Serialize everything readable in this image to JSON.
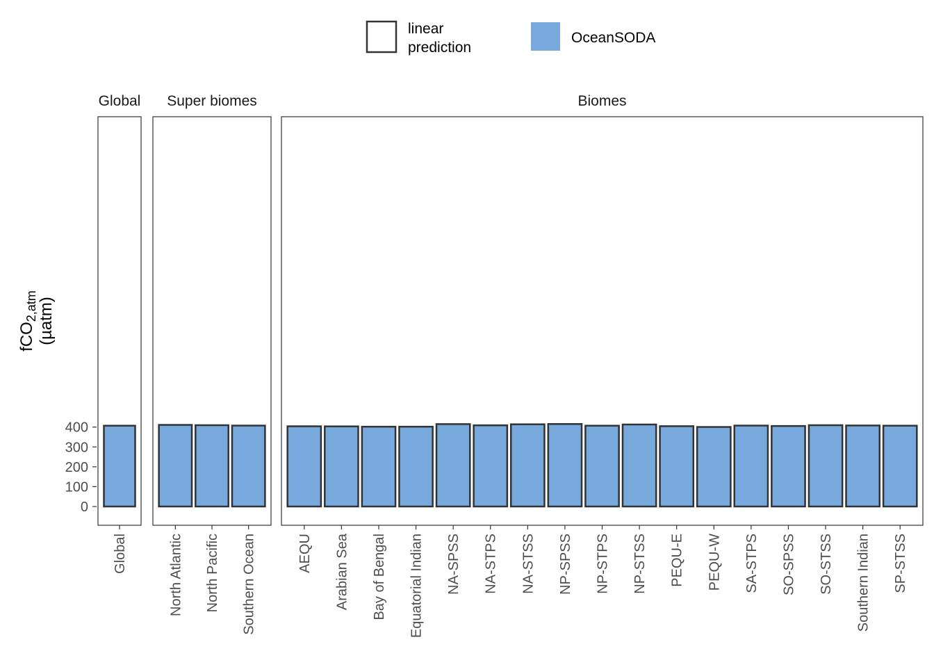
{
  "legend": {
    "items": [
      {
        "label_line1": "linear",
        "label_line2": "prediction",
        "type": "outline",
        "color": "#333333"
      },
      {
        "label": "OceanSODA",
        "type": "fill",
        "color": "#77a9dc"
      }
    ]
  },
  "chart_data": {
    "type": "bar",
    "ylabel_main": "fCO",
    "ylabel_sub": "2,atm",
    "ylabel_units": "(µatm)",
    "ylim": [
      0,
      420
    ],
    "yticks": [
      0,
      100,
      200,
      300,
      400
    ],
    "grid": false,
    "legend_position": "top",
    "colors": {
      "oceansoda": "#77a9dc",
      "outline": "#333333"
    },
    "panels": [
      {
        "title": "Global",
        "categories": [
          "Global"
        ],
        "series": [
          {
            "name": "linear prediction",
            "values": [
              407
            ]
          },
          {
            "name": "OceanSODA",
            "values": [
              407
            ]
          }
        ]
      },
      {
        "title": "Super biomes",
        "categories": [
          "North Atlantic",
          "North Pacific",
          "Southern Ocean"
        ],
        "series": [
          {
            "name": "linear prediction",
            "values": [
              411,
              409.5,
              407.5
            ]
          },
          {
            "name": "OceanSODA",
            "values": [
              411,
              409.5,
              407.5
            ]
          }
        ]
      },
      {
        "title": "Biomes",
        "categories": [
          "AEQU",
          "Arabian Sea",
          "Bay of Bengal",
          "Equatorial Indian",
          "NA-SPSS",
          "NA-STPS",
          "NA-STSS",
          "NP-SPSS",
          "NP-STPS",
          "NP-STSS",
          "PEQU-E",
          "PEQU-W",
          "SA-STPS",
          "SO-SPSS",
          "SO-STSS",
          "Southern Indian",
          "SP-STSS"
        ],
        "series": [
          {
            "name": "linear prediction",
            "values": [
              404,
              403.5,
              402,
              402,
              415,
              409,
              414,
              415.5,
              407,
              413,
              404.5,
              400.5,
              407.5,
              405.5,
              409.5,
              408,
              407
            ]
          },
          {
            "name": "OceanSODA",
            "values": [
              404,
              403,
              402,
              402,
              415,
              407.5,
              414,
              415.5,
              407,
              413,
              403,
              400.5,
              407.5,
              405.5,
              409.5,
              408,
              407
            ]
          }
        ]
      }
    ]
  }
}
